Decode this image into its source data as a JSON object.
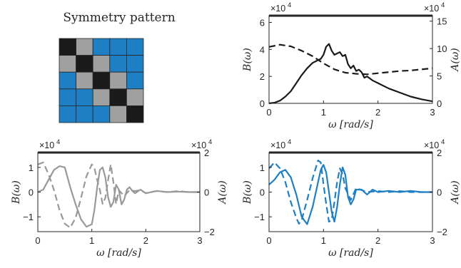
{
  "chart_data": [
    {
      "type": "heatmap",
      "title": "Symmetry pattern",
      "rows": 5,
      "cols": 5,
      "cells": [
        [
          "black",
          "gray",
          "blue",
          "blue",
          "blue"
        ],
        [
          "gray",
          "black",
          "gray",
          "blue",
          "blue"
        ],
        [
          "blue",
          "gray",
          "black",
          "gray",
          "blue"
        ],
        [
          "blue",
          "blue",
          "gray",
          "black",
          "gray"
        ],
        [
          "blue",
          "blue",
          "blue",
          "gray",
          "black"
        ]
      ]
    },
    {
      "type": "line",
      "xlabel": "ω [rad/s]",
      "ylabel": "B(ω)",
      "ylabel_right": "A(ω)",
      "xlim": [
        0,
        3
      ],
      "ylim": [
        0,
        6.5
      ],
      "ylim_right": [
        0,
        16
      ],
      "xticks": [
        "0",
        "1",
        "2",
        "3"
      ],
      "yticks": [
        "0",
        "2",
        "4",
        "6"
      ],
      "yticks_right": [
        "0",
        "5",
        "10",
        "15"
      ],
      "exponent_left": "×10^4",
      "exponent_right": "×10^4",
      "series": [
        {
          "axis": "left",
          "style": "solid",
          "x": [
            0,
            0.1,
            0.2,
            0.3,
            0.4,
            0.5,
            0.6,
            0.7,
            0.8,
            0.9,
            0.95,
            1.0,
            1.05,
            1.1,
            1.15,
            1.2,
            1.25,
            1.3,
            1.35,
            1.4,
            1.45,
            1.5,
            1.55,
            1.6,
            1.65,
            1.7,
            1.75,
            1.8,
            1.9,
            2.0,
            2.2,
            2.4,
            2.6,
            2.8,
            3.0
          ],
          "y": [
            0,
            0.05,
            0.2,
            0.5,
            0.9,
            1.5,
            2.1,
            2.6,
            3.0,
            3.2,
            3.3,
            3.6,
            4.2,
            4.4,
            3.9,
            3.6,
            3.7,
            3.8,
            3.5,
            3.6,
            2.9,
            2.6,
            2.8,
            2.4,
            2.5,
            2.3,
            1.9,
            2.0,
            1.7,
            1.5,
            1.1,
            0.8,
            0.5,
            0.3,
            0.15
          ]
        },
        {
          "axis": "right",
          "style": "dashed",
          "x": [
            0,
            0.2,
            0.4,
            0.6,
            0.8,
            1.0,
            1.2,
            1.4,
            1.6,
            1.8,
            2.0,
            2.2,
            2.4,
            2.6,
            2.8,
            3.0
          ],
          "y": [
            10.3,
            10.7,
            10.4,
            9.6,
            8.6,
            7.3,
            6.2,
            5.6,
            5.4,
            5.3,
            5.5,
            5.7,
            5.9,
            6.0,
            6.2,
            6.4
          ]
        }
      ]
    },
    {
      "type": "line",
      "color": "#999999",
      "xlabel": "ω [rad/s]",
      "ylabel": "B(ω)",
      "ylabel_right": "A(ω)",
      "xlim": [
        0,
        3
      ],
      "ylim": [
        -1.6,
        1.6
      ],
      "ylim_right": [
        -2,
        2
      ],
      "xticks": [
        "0",
        "1",
        "2",
        "3"
      ],
      "yticks": [
        "-1",
        "0",
        "1"
      ],
      "yticks_right": [
        "-2",
        "0",
        "2"
      ],
      "exponent_left": "×10^4",
      "exponent_right": "×10^4",
      "series": [
        {
          "axis": "left",
          "style": "solid",
          "x": [
            0,
            0.1,
            0.2,
            0.3,
            0.4,
            0.5,
            0.55,
            0.6,
            0.7,
            0.8,
            0.9,
            1.0,
            1.05,
            1.1,
            1.15,
            1.2,
            1.25,
            1.3,
            1.35,
            1.4,
            1.45,
            1.5,
            1.55,
            1.6,
            1.65,
            1.7,
            1.75,
            1.8,
            1.9,
            2.0,
            2.2,
            2.4,
            2.6,
            2.8,
            3.0
          ],
          "y": [
            0,
            0.1,
            0.5,
            0.9,
            1.05,
            1.0,
            0.6,
            0.2,
            -0.5,
            -1.1,
            -1.4,
            -1.3,
            -0.7,
            0.2,
            0.9,
            1.0,
            0.6,
            -0.2,
            -0.6,
            -0.4,
            0.3,
            0.1,
            -0.5,
            -0.3,
            0.1,
            0.2,
            0.05,
            -0.05,
            0.1,
            -0.05,
            0.05,
            0,
            0.02,
            0,
            0
          ]
        },
        {
          "axis": "right",
          "style": "dashed",
          "x": [
            0,
            0.1,
            0.2,
            0.3,
            0.4,
            0.5,
            0.6,
            0.7,
            0.8,
            0.9,
            1.0,
            1.05,
            1.1,
            1.15,
            1.2,
            1.25,
            1.3,
            1.35,
            1.4,
            1.45,
            1.5,
            1.6,
            1.7,
            1.8,
            1.9,
            2.0,
            2.2,
            2.4,
            2.6,
            2.8,
            3.0
          ],
          "y": [
            1.4,
            1.5,
            0.9,
            0.1,
            -0.9,
            -1.6,
            -1.8,
            -1.3,
            -0.3,
            0.8,
            1.4,
            1.2,
            0.6,
            0.1,
            -0.6,
            -0.3,
            0.6,
            1.4,
            0.5,
            -0.6,
            0.1,
            -0.2,
            0.1,
            0.05,
            0.1,
            -0.05,
            0.05,
            0,
            0.05,
            0,
            0
          ]
        }
      ]
    },
    {
      "type": "line",
      "color": "#1f7fc4",
      "xlabel": "ω [rad/s]",
      "ylabel": "B(ω)",
      "ylabel_right": "A(ω)",
      "xlim": [
        0,
        3
      ],
      "ylim": [
        -1.6,
        1.6
      ],
      "ylim_right": [
        -2,
        2
      ],
      "xticks": [
        "0",
        "1",
        "2",
        "3"
      ],
      "yticks": [
        "-1",
        "0",
        "1"
      ],
      "yticks_right": [
        "-2",
        "0",
        "2"
      ],
      "exponent_left": "×10^4",
      "exponent_right": "×10^4",
      "series": [
        {
          "axis": "left",
          "style": "solid",
          "x": [
            0,
            0.1,
            0.2,
            0.3,
            0.4,
            0.5,
            0.6,
            0.7,
            0.8,
            0.9,
            0.95,
            1.0,
            1.05,
            1.1,
            1.15,
            1.2,
            1.25,
            1.3,
            1.35,
            1.4,
            1.45,
            1.5,
            1.55,
            1.6,
            1.7,
            1.8,
            1.9,
            2.0,
            2.2,
            2.4,
            2.6,
            2.8,
            3.0
          ],
          "y": [
            0.3,
            0.5,
            0.8,
            0.9,
            0.6,
            -0.1,
            -1.0,
            -1.3,
            -0.6,
            0.4,
            0.9,
            1.1,
            0.8,
            0.0,
            -0.8,
            -1.2,
            -0.6,
            0.3,
            1.0,
            0.7,
            -0.2,
            -0.5,
            -0.3,
            0.1,
            0.1,
            -0.1,
            0.1,
            0,
            0.05,
            0,
            0.05,
            0,
            0
          ]
        },
        {
          "axis": "right",
          "style": "dashed",
          "x": [
            0,
            0.1,
            0.2,
            0.3,
            0.4,
            0.5,
            0.55,
            0.6,
            0.7,
            0.8,
            0.9,
            0.95,
            1.0,
            1.05,
            1.1,
            1.15,
            1.2,
            1.25,
            1.3,
            1.35,
            1.4,
            1.5,
            1.6,
            1.7,
            1.8,
            2.0,
            2.2,
            2.4,
            2.6,
            2.8,
            3.0
          ],
          "y": [
            1.2,
            1.5,
            1.2,
            0.5,
            -0.5,
            -1.3,
            -1.6,
            -1.4,
            -0.4,
            0.7,
            1.6,
            1.5,
            0.4,
            -0.6,
            -1.5,
            -1.4,
            -0.5,
            0.5,
            1.2,
            0.9,
            0.2,
            -0.4,
            0.2,
            0.1,
            0,
            0.05,
            0,
            0.05,
            0,
            0,
            0
          ]
        }
      ]
    }
  ],
  "colors": {
    "black": "#1a1a1a",
    "gray": "#a0a0a0",
    "blue": "#1f7fc4",
    "mid_gray": "#999999"
  }
}
